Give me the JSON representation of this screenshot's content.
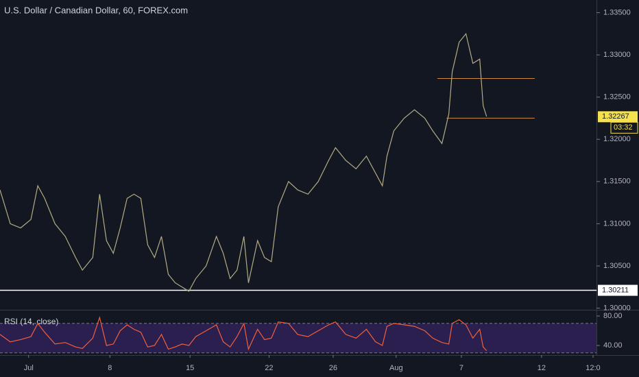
{
  "chart_data": [
    {
      "type": "line",
      "title": "U.S. Dollar / Canadian Dollar, 60, FOREX.com",
      "color": "#b3ad86",
      "x": [
        -2.5,
        -1.6,
        -0.7,
        0.2,
        0.8,
        1.4,
        2.3,
        3.2,
        4.1,
        4.7,
        5.6,
        6.2,
        6.8,
        7.4,
        8.0,
        8.6,
        9.2,
        9.8,
        10.4,
        11.0,
        11.6,
        12.2,
        12.8,
        13.4,
        14.0,
        14.6,
        15.5,
        16.4,
        17.0,
        17.6,
        18.2,
        18.8,
        19.2,
        20.0,
        20.6,
        21.2,
        21.8,
        22.7,
        23.5,
        24.4,
        25.3,
        26.2,
        26.8,
        27.7,
        28.6,
        29.5,
        30.3,
        30.9,
        31.3,
        31.9,
        32.8,
        33.7,
        34.6,
        35.3,
        36.1,
        36.7,
        37.0,
        37.6,
        38.2,
        38.8,
        39.4,
        39.7,
        40.0
      ],
      "values": [
        1.314,
        1.31,
        1.3095,
        1.3105,
        1.3145,
        1.313,
        1.31,
        1.3085,
        1.306,
        1.3045,
        1.306,
        1.3135,
        1.308,
        1.3065,
        1.3095,
        1.313,
        1.3135,
        1.313,
        1.3075,
        1.306,
        1.3085,
        1.304,
        1.303,
        1.3025,
        1.302,
        1.3035,
        1.305,
        1.3085,
        1.3065,
        1.3035,
        1.3045,
        1.3085,
        1.303,
        1.308,
        1.306,
        1.3055,
        1.312,
        1.315,
        1.314,
        1.3135,
        1.315,
        1.3175,
        1.319,
        1.3175,
        1.3165,
        1.318,
        1.316,
        1.3145,
        1.318,
        1.321,
        1.3225,
        1.3235,
        1.3225,
        1.321,
        1.3195,
        1.323,
        1.328,
        1.3315,
        1.3325,
        1.329,
        1.3295,
        1.324,
        1.3227
      ],
      "xlim": [
        -2.5,
        49.6
      ],
      "ylim": [
        1.2998,
        1.3365
      ],
      "yticks": [
        {
          "value": 1.3,
          "label": "1.30000"
        },
        {
          "value": 1.305,
          "label": "1.30500"
        },
        {
          "value": 1.31,
          "label": "1.31000"
        },
        {
          "value": 1.315,
          "label": "1.31500"
        },
        {
          "value": 1.32,
          "label": "1.32000"
        },
        {
          "value": 1.325,
          "label": "1.32500"
        },
        {
          "value": 1.33,
          "label": "1.33000"
        },
        {
          "value": 1.335,
          "label": "1.33500"
        }
      ],
      "support": {
        "value": 1.30211,
        "color": "#ffffff"
      },
      "last": {
        "value": 1.32267,
        "countdown": "03:32",
        "color": "#f5e14d"
      },
      "segments": [
        {
          "value": 1.3272,
          "x": [
            35.7,
            44.2
          ]
        },
        {
          "value": 1.3225,
          "x": [
            36.5,
            44.2
          ]
        }
      ],
      "segment_color": "#d08a3c"
    },
    {
      "type": "line",
      "title": "RSI (14, close)",
      "color": "#f2613a",
      "band_color": "#2a1f4e",
      "x": [
        -2.5,
        -1.6,
        -0.7,
        0.2,
        0.8,
        1.4,
        2.3,
        3.2,
        4.1,
        4.7,
        5.6,
        6.2,
        6.8,
        7.4,
        8.0,
        8.6,
        9.2,
        9.8,
        10.4,
        11.0,
        11.6,
        12.2,
        12.8,
        13.4,
        14.0,
        14.6,
        15.5,
        16.4,
        17.0,
        17.6,
        18.2,
        18.8,
        19.2,
        20.0,
        20.6,
        21.2,
        21.8,
        22.7,
        23.5,
        24.4,
        25.3,
        26.2,
        26.8,
        27.7,
        28.6,
        29.5,
        30.3,
        30.9,
        31.3,
        31.9,
        32.8,
        33.7,
        34.6,
        35.3,
        36.1,
        36.7,
        37.0,
        37.6,
        38.2,
        38.8,
        39.4,
        39.7,
        40.0
      ],
      "values": [
        55,
        45,
        48,
        52,
        70,
        58,
        42,
        44,
        38,
        36,
        50,
        78,
        40,
        42,
        60,
        68,
        62,
        58,
        38,
        40,
        55,
        35,
        38,
        42,
        40,
        52,
        60,
        68,
        45,
        38,
        52,
        70,
        35,
        62,
        48,
        50,
        72,
        70,
        55,
        52,
        60,
        68,
        72,
        55,
        50,
        62,
        45,
        40,
        66,
        70,
        68,
        66,
        60,
        50,
        44,
        42,
        70,
        75,
        68,
        50,
        62,
        38,
        33
      ],
      "xlim": [
        -2.5,
        49.6
      ],
      "ylim": [
        27,
        88.4
      ],
      "bands": [
        30,
        70
      ],
      "yticks": [
        {
          "value": 80,
          "label": "80.00"
        },
        {
          "value": 40,
          "label": "40.00"
        }
      ],
      "xticks": [
        {
          "value": 0,
          "label": "Jul"
        },
        {
          "value": 7.1,
          "label": "8"
        },
        {
          "value": 14.1,
          "label": "15"
        },
        {
          "value": 21.0,
          "label": "22"
        },
        {
          "value": 26.6,
          "label": "26"
        },
        {
          "value": 32.1,
          "label": "Aug"
        },
        {
          "value": 37.8,
          "label": "7"
        },
        {
          "value": 44.8,
          "label": "12"
        },
        {
          "value": 49.3,
          "label": "12:0"
        }
      ]
    }
  ]
}
